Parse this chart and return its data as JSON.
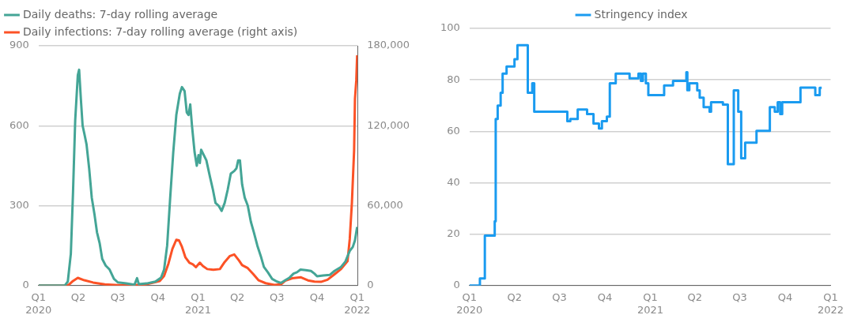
{
  "chart_data": [
    {
      "type": "line",
      "legend": "top left",
      "grid": "y",
      "xlim": [
        "2020-01-01",
        "2022-01-02"
      ],
      "xticks": [
        {
          "value": "2020-01-01",
          "label": "Q1\n2020"
        },
        {
          "value": "2020-04-01",
          "label": "Q2"
        },
        {
          "value": "2020-07-01",
          "label": "Q3"
        },
        {
          "value": "2020-10-01",
          "label": "Q4"
        },
        {
          "value": "2021-01-01",
          "label": "Q1\n2021"
        },
        {
          "value": "2021-04-01",
          "label": "Q2"
        },
        {
          "value": "2021-07-01",
          "label": "Q3"
        },
        {
          "value": "2021-10-01",
          "label": "Q4"
        },
        {
          "value": "2022-01-01",
          "label": "Q1\n2022"
        }
      ],
      "ylim": [
        0,
        900
      ],
      "yticks": [
        0,
        300,
        600,
        900
      ],
      "y2lim": [
        0,
        180000
      ],
      "y2ticks": [
        0,
        {
          "value": 60000,
          "label": "60,000"
        },
        {
          "value": 120000,
          "label": "120,000"
        },
        {
          "value": 180000,
          "label": "180,000"
        }
      ],
      "series": [
        {
          "name": "Daily deaths: 7-day rolling average",
          "color": "#44a596",
          "x": [
            "2020-01-01",
            "2020-03-01",
            "2020-03-08",
            "2020-03-15",
            "2020-03-20",
            "2020-03-25",
            "2020-03-31",
            "2020-04-03",
            "2020-04-07",
            "2020-04-11",
            "2020-04-15",
            "2020-04-20",
            "2020-04-26",
            "2020-05-02",
            "2020-05-08",
            "2020-05-14",
            "2020-05-20",
            "2020-05-26",
            "2020-06-03",
            "2020-06-12",
            "2020-06-22",
            "2020-07-01",
            "2020-07-20",
            "2020-08-08",
            "2020-08-14",
            "2020-08-18",
            "2020-09-05",
            "2020-09-25",
            "2020-10-08",
            "2020-10-15",
            "2020-10-22",
            "2020-10-29",
            "2020-11-05",
            "2020-11-12",
            "2020-11-20",
            "2020-11-25",
            "2020-12-01",
            "2020-12-06",
            "2020-12-10",
            "2020-12-14",
            "2020-12-18",
            "2020-12-24",
            "2020-12-29",
            "2021-01-02",
            "2021-01-05",
            "2021-01-08",
            "2021-01-14",
            "2021-01-20",
            "2021-01-28",
            "2021-02-04",
            "2021-02-10",
            "2021-02-17",
            "2021-02-24",
            "2021-03-03",
            "2021-03-10",
            "2021-03-17",
            "2021-03-25",
            "2021-03-30",
            "2021-04-03",
            "2021-04-07",
            "2021-04-12",
            "2021-04-18",
            "2021-04-25",
            "2021-05-02",
            "2021-05-09",
            "2021-05-17",
            "2021-05-25",
            "2021-06-01",
            "2021-06-10",
            "2021-06-20",
            "2021-07-01",
            "2021-07-10",
            "2021-07-20",
            "2021-07-30",
            "2021-08-08",
            "2021-08-16",
            "2021-08-24",
            "2021-09-05",
            "2021-09-17",
            "2021-09-25",
            "2021-10-01",
            "2021-10-15",
            "2021-10-30",
            "2021-11-10",
            "2021-11-25",
            "2021-12-05",
            "2021-12-15",
            "2021-12-22",
            "2021-12-27",
            "2022-01-01"
          ],
          "values": [
            0,
            0,
            15,
            120,
            350,
            620,
            790,
            810,
            700,
            600,
            570,
            530,
            440,
            330,
            270,
            200,
            160,
            100,
            75,
            60,
            25,
            12,
            8,
            3,
            28,
            5,
            8,
            15,
            30,
            60,
            150,
            330,
            500,
            640,
            720,
            745,
            730,
            650,
            640,
            680,
            600,
            500,
            450,
            490,
            460,
            510,
            490,
            470,
            410,
            360,
            310,
            300,
            280,
            310,
            360,
            420,
            430,
            440,
            470,
            470,
            380,
            330,
            300,
            240,
            200,
            150,
            110,
            70,
            50,
            25,
            15,
            10,
            20,
            30,
            45,
            50,
            60,
            58,
            55,
            45,
            35,
            38,
            40,
            55,
            70,
            90,
            130,
            145,
            170,
            220
          ]
        },
        {
          "name": "Daily infections: 7-day rolling average (right axis)",
          "color": "#fc5226",
          "axis": "y2",
          "x": [
            "2020-01-01",
            "2020-03-01",
            "2020-03-10",
            "2020-03-20",
            "2020-03-31",
            "2020-04-15",
            "2020-05-05",
            "2020-06-01",
            "2020-07-01",
            "2020-08-01",
            "2020-09-01",
            "2020-09-20",
            "2020-10-05",
            "2020-10-15",
            "2020-10-25",
            "2020-11-03",
            "2020-11-12",
            "2020-11-18",
            "2020-11-25",
            "2020-12-03",
            "2020-12-12",
            "2020-12-20",
            "2020-12-27",
            "2021-01-05",
            "2021-01-12",
            "2021-01-22",
            "2021-02-05",
            "2021-02-20",
            "2021-03-03",
            "2021-03-15",
            "2021-03-25",
            "2021-04-05",
            "2021-04-12",
            "2021-04-25",
            "2021-05-08",
            "2021-05-20",
            "2021-06-05",
            "2021-06-25",
            "2021-07-10",
            "2021-07-20",
            "2021-08-05",
            "2021-08-25",
            "2021-09-10",
            "2021-09-25",
            "2021-10-10",
            "2021-10-25",
            "2021-11-10",
            "2021-11-25",
            "2021-12-10",
            "2021-12-15",
            "2021-12-20",
            "2021-12-25",
            "2021-12-27",
            "2021-12-30",
            "2022-01-01"
          ],
          "values": [
            0,
            0,
            500,
            3500,
            5800,
            4000,
            2300,
            900,
            300,
            300,
            800,
            2300,
            3400,
            7300,
            16500,
            27500,
            34400,
            34000,
            29100,
            21100,
            17200,
            16000,
            13800,
            17200,
            14700,
            12400,
            11900,
            12400,
            17700,
            22200,
            23400,
            18800,
            15400,
            13100,
            8500,
            3900,
            1800,
            500,
            900,
            3700,
            5500,
            6200,
            3900,
            3000,
            2800,
            4400,
            8500,
            12400,
            18300,
            34900,
            62400,
            101300,
            140300,
            154000,
            172900
          ]
        }
      ]
    },
    {
      "type": "step",
      "legend": "top",
      "grid": "y",
      "xlim": [
        "2020-01-01",
        "2022-01-01"
      ],
      "xticks": [
        {
          "value": "2020-01-01",
          "label": "Q1\n2020"
        },
        {
          "value": "2020-04-01",
          "label": "Q2"
        },
        {
          "value": "2020-07-01",
          "label": "Q3"
        },
        {
          "value": "2020-10-01",
          "label": "Q4"
        },
        {
          "value": "2021-01-01",
          "label": "Q1\n2021"
        },
        {
          "value": "2021-04-01",
          "label": "Q2"
        },
        {
          "value": "2021-07-01",
          "label": "Q3"
        },
        {
          "value": "2021-10-01",
          "label": "Q4"
        },
        {
          "value": "2022-01-01",
          "label": "Q1\n2022"
        }
      ],
      "ylim": [
        0,
        100
      ],
      "yticks": [
        0,
        20,
        40,
        60,
        80,
        100
      ],
      "series": [
        {
          "name": "Stringency index",
          "color": "#1a9bf0",
          "x": [
            "2020-01-01",
            "2020-01-22",
            "2020-02-01",
            "2020-02-18",
            "2020-02-21",
            "2020-02-23",
            "2020-02-27",
            "2020-03-04",
            "2020-03-08",
            "2020-03-16",
            "2020-04-01",
            "2020-04-07",
            "2020-04-28",
            "2020-05-07",
            "2020-05-11",
            "2020-07-17",
            "2020-07-23",
            "2020-08-07",
            "2020-08-26",
            "2020-09-08",
            "2020-09-19",
            "2020-09-25",
            "2020-10-05",
            "2020-10-11",
            "2020-10-23",
            "2020-11-20",
            "2020-12-08",
            "2020-12-13",
            "2020-12-17",
            "2020-12-23",
            "2020-12-28",
            "2021-01-29",
            "2021-02-16",
            "2021-03-15",
            "2021-03-17",
            "2021-03-21",
            "2021-04-06",
            "2021-04-11",
            "2021-04-19",
            "2021-05-01",
            "2021-05-04",
            "2021-05-28",
            "2021-06-07",
            "2021-06-19",
            "2021-06-28",
            "2021-07-04",
            "2021-07-12",
            "2021-08-04",
            "2021-08-31",
            "2021-09-10",
            "2021-09-16",
            "2021-09-21",
            "2021-09-25",
            "2021-11-01",
            "2021-12-01",
            "2021-12-10",
            "2021-12-14"
          ],
          "values": [
            0,
            2.8,
            19.4,
            19.4,
            25,
            64.8,
            70,
            75,
            82.4,
            85.2,
            88,
            93.5,
            75,
            78.7,
            67.6,
            63.9,
            64.8,
            68.5,
            66.7,
            63,
            61.1,
            63.9,
            65.7,
            78.7,
            82.4,
            80.6,
            82.4,
            79.6,
            82.4,
            78.7,
            74.1,
            77.8,
            79.6,
            83,
            76,
            78.7,
            75.9,
            73.1,
            69.4,
            67.6,
            71.3,
            70.4,
            47.2,
            75.9,
            67.6,
            49.5,
            55.6,
            60.2,
            69.4,
            67.6,
            71.3,
            66.7,
            71.3,
            77,
            74.1,
            76.9,
            76.9
          ]
        }
      ]
    }
  ]
}
